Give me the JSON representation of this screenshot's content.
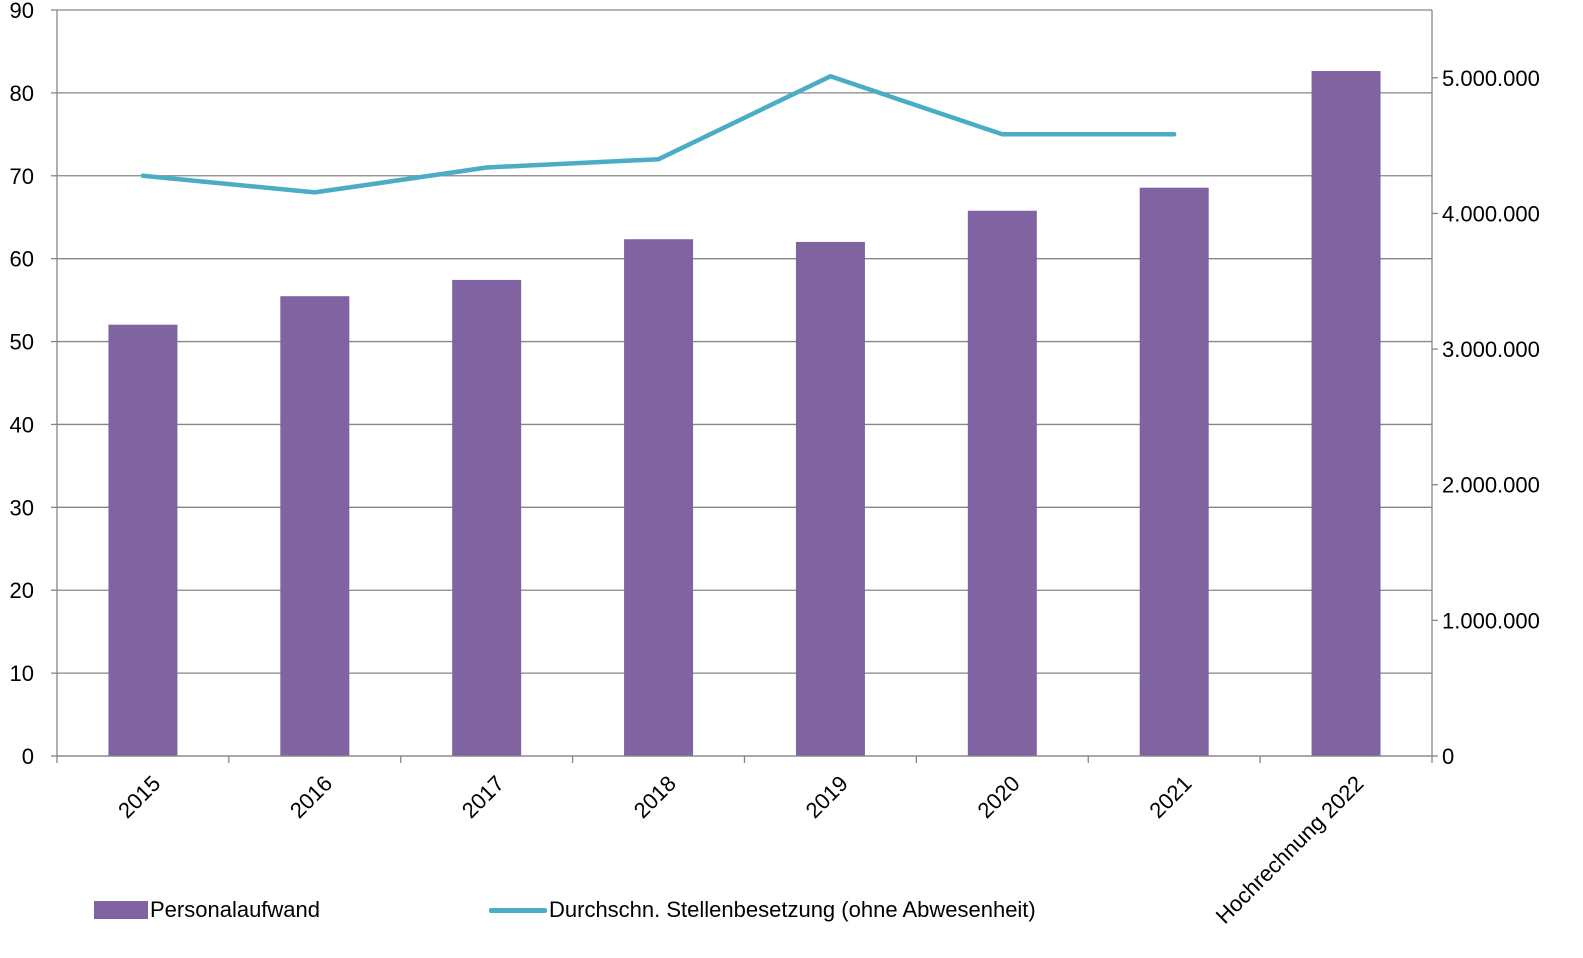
{
  "chart_data": {
    "type": "bar",
    "title": "",
    "xlabel": "",
    "ylabel": "",
    "categories": [
      "2015",
      "2016",
      "2017",
      "2018",
      "2019",
      "2020",
      "2021",
      "Hochrechnung 2022"
    ],
    "series": [
      {
        "name": "Personalaufwand",
        "type": "bar",
        "axis": "right",
        "color": "#8064A2",
        "values": [
          3180000,
          3390000,
          3510000,
          3810000,
          3790000,
          4020000,
          4190000,
          5050000
        ]
      },
      {
        "name": "Durchschn. Stellenbesetzung (ohne Abwesenheit)",
        "type": "line",
        "axis": "left",
        "color": "#4BACC6",
        "values": [
          70,
          68,
          71,
          72,
          82,
          75,
          75,
          null
        ]
      }
    ],
    "y_left": {
      "ylim": [
        0,
        90
      ],
      "ticks": [
        "0",
        "10",
        "20",
        "30",
        "40",
        "50",
        "60",
        "70",
        "80",
        "90"
      ]
    },
    "y_right": {
      "ylim": [
        0,
        5500000
      ],
      "ticks": [
        "0",
        "1.000.000",
        "2.000.000",
        "3.000.000",
        "4.000.000",
        "5.000.000"
      ]
    },
    "grid": true,
    "legend_position": "bottom"
  }
}
